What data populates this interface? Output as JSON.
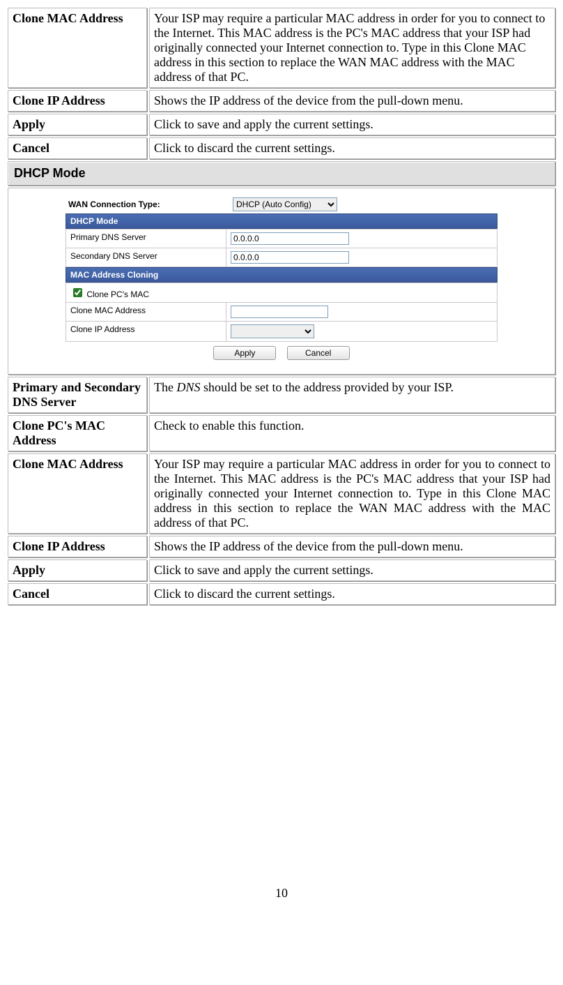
{
  "pageNumber": "10",
  "top_rows": {
    "cloneMac": {
      "label": "Clone MAC Address",
      "desc": "Your ISP may require a particular MAC address in order for you to connect to the Internet. This MAC address is the PC's MAC address that your ISP had originally connected your Internet connection to. Type in this Clone MAC address in this section to replace the WAN MAC address with the MAC address of that PC."
    },
    "cloneIp": {
      "label": "Clone IP Address",
      "desc": "Shows the IP address of the device from the pull-down menu."
    },
    "apply": {
      "label": "Apply",
      "desc": "Click to save and apply the current settings."
    },
    "cancel": {
      "label": "Cancel",
      "desc": "Click to discard the current settings."
    }
  },
  "section_title": "DHCP Mode",
  "ui": {
    "wan_label": "WAN Connection Type:",
    "wan_value": "DHCP (Auto Config)",
    "bar1": "DHCP Mode",
    "primary_dns_label": "Primary DNS Server",
    "primary_dns_value": "0.0.0.0",
    "secondary_dns_label": "Secondary DNS Server",
    "secondary_dns_value": "0.0.0.0",
    "bar2": "MAC Address Cloning",
    "clone_chk_label": "Clone PC's MAC",
    "clone_mac_label": "Clone MAC Address",
    "clone_mac_value": "",
    "clone_ip_label": "Clone IP Address",
    "clone_ip_value": "",
    "apply_btn": "Apply",
    "cancel_btn": "Cancel"
  },
  "bottom_rows": {
    "dns": {
      "label": "Primary and Secondary DNS Server",
      "desc_prefix": "The ",
      "desc_italic": "DNS",
      "desc_suffix": " should be set to the address provided by your ISP."
    },
    "clonePc": {
      "label": "Clone PC's MAC Address",
      "desc": "Check to enable this function."
    },
    "cloneMac": {
      "label": "Clone MAC Address",
      "desc": "Your ISP may require a particular MAC address in order for you to connect to the Internet. This MAC address is the PC's MAC address that your ISP had originally connected your Internet connection to. Type in this Clone MAC address in this section to replace the WAN MAC address with the MAC address of that PC."
    },
    "cloneIp": {
      "label": "Clone IP Address",
      "desc": "Shows the IP address of the device from the pull-down menu."
    },
    "apply": {
      "label": "Apply",
      "desc": "Click to save and apply the current settings."
    },
    "cancel": {
      "label": "Cancel",
      "desc": "Click to discard the current settings."
    }
  }
}
